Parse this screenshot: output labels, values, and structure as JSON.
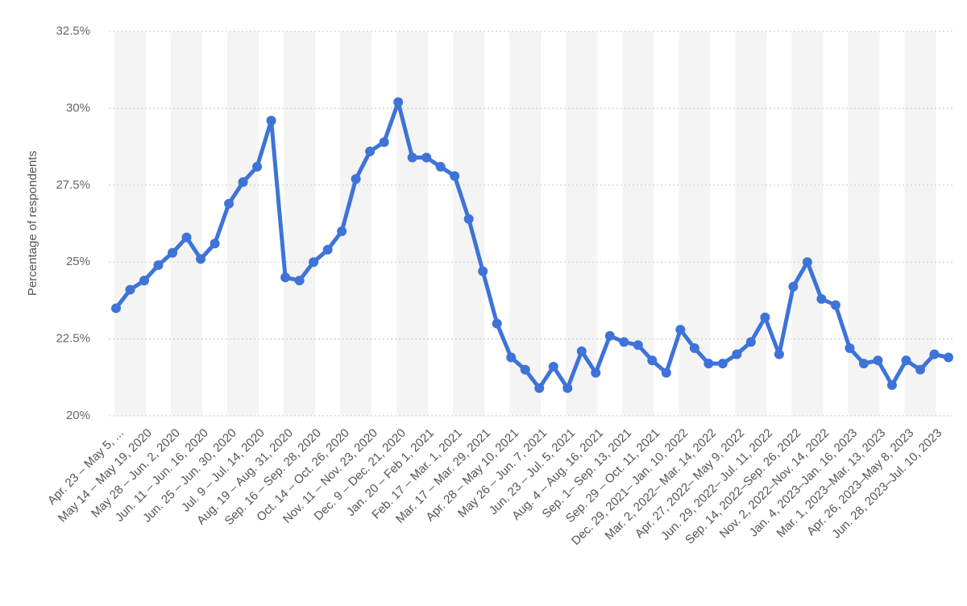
{
  "chart_data": {
    "type": "line",
    "y_label": "Percentage of respondents",
    "categories": [
      "Apr. 23 – May 5, ...",
      null,
      "May 14 – May 19, 2020",
      null,
      "May 28 – Jun. 2, 2020",
      null,
      "Jun. 11 – Jun. 16, 2020",
      null,
      "Jun. 25 – Jun. 30, 2020",
      null,
      "Jul. 9 – Jul. 14, 2020",
      null,
      "Aug. 19 – Aug. 31, 2020",
      null,
      "Sep. 16 – Sep. 28, 2020",
      null,
      "Oct. 14 – Oct. 26, 2020",
      null,
      "Nov. 11 – Nov. 23, 2020",
      null,
      "Dec. 9 – Dec. 21, 2020",
      null,
      "Jan. 20 – Feb 1, 2021",
      null,
      "Feb. 17 – Mar. 1, 2021",
      null,
      "Mar. 17 – Mar. 29, 2021",
      null,
      "Apr. 28 – May 10, 2021",
      null,
      "May 26 – Jun. 7, 2021",
      null,
      "Jun. 23 – Jul. 5, 2021",
      null,
      "Aug. 4 – Aug. 16, 2021",
      null,
      "Sep. 1– Sep. 13, 2021",
      null,
      "Sep. 29 – Oct. 11, 2021",
      null,
      "Dec. 29, 2021– Jan. 10, 2022",
      null,
      "Mar. 2, 2022– Mar. 14, 2022",
      null,
      "Apr. 27, 2022– May 9, 2022",
      null,
      "Jun. 29, 2022– Jul. 11, 2022",
      null,
      "Sep. 14, 2022–Sep. 26, 2022",
      null,
      "Nov. 2, 2022–Nov. 14, 2022",
      null,
      "Jan. 4, 2023–Jan. 16, 2023",
      null,
      "Mar. 1, 2023–Mar. 13, 2023",
      null,
      "Apr. 26, 2023–May 8, 2023",
      null,
      "Jun. 28, 2023–Jul. 10, 2023",
      null
    ],
    "values": [
      23.5,
      24.1,
      24.4,
      24.9,
      25.3,
      25.8,
      25.1,
      25.6,
      26.9,
      27.6,
      28.1,
      29.6,
      24.5,
      24.4,
      25.0,
      25.4,
      26.0,
      27.7,
      28.6,
      28.9,
      30.2,
      28.4,
      28.4,
      28.1,
      27.8,
      26.4,
      24.7,
      23.0,
      21.9,
      21.5,
      20.9,
      21.6,
      20.9,
      22.1,
      21.4,
      22.6,
      22.4,
      22.3,
      21.8,
      21.4,
      22.8,
      22.2,
      21.7,
      21.7,
      22.0,
      22.4,
      23.2,
      22.0,
      24.2,
      25.0,
      23.8,
      23.6,
      22.2,
      21.7,
      21.8,
      21.0,
      21.8,
      21.5,
      22.0,
      21.9
    ],
    "color": "#3e73d8",
    "ylim": [
      20,
      32.5
    ],
    "yticks": [
      {
        "value": 20,
        "label": "20%"
      },
      {
        "value": 22.5,
        "label": "22.5%"
      },
      {
        "value": 25,
        "label": "25%"
      },
      {
        "value": 27.5,
        "label": "27.5%"
      },
      {
        "value": 30,
        "label": "30%"
      },
      {
        "value": 32.5,
        "label": "32.5%"
      }
    ],
    "grid": true
  }
}
